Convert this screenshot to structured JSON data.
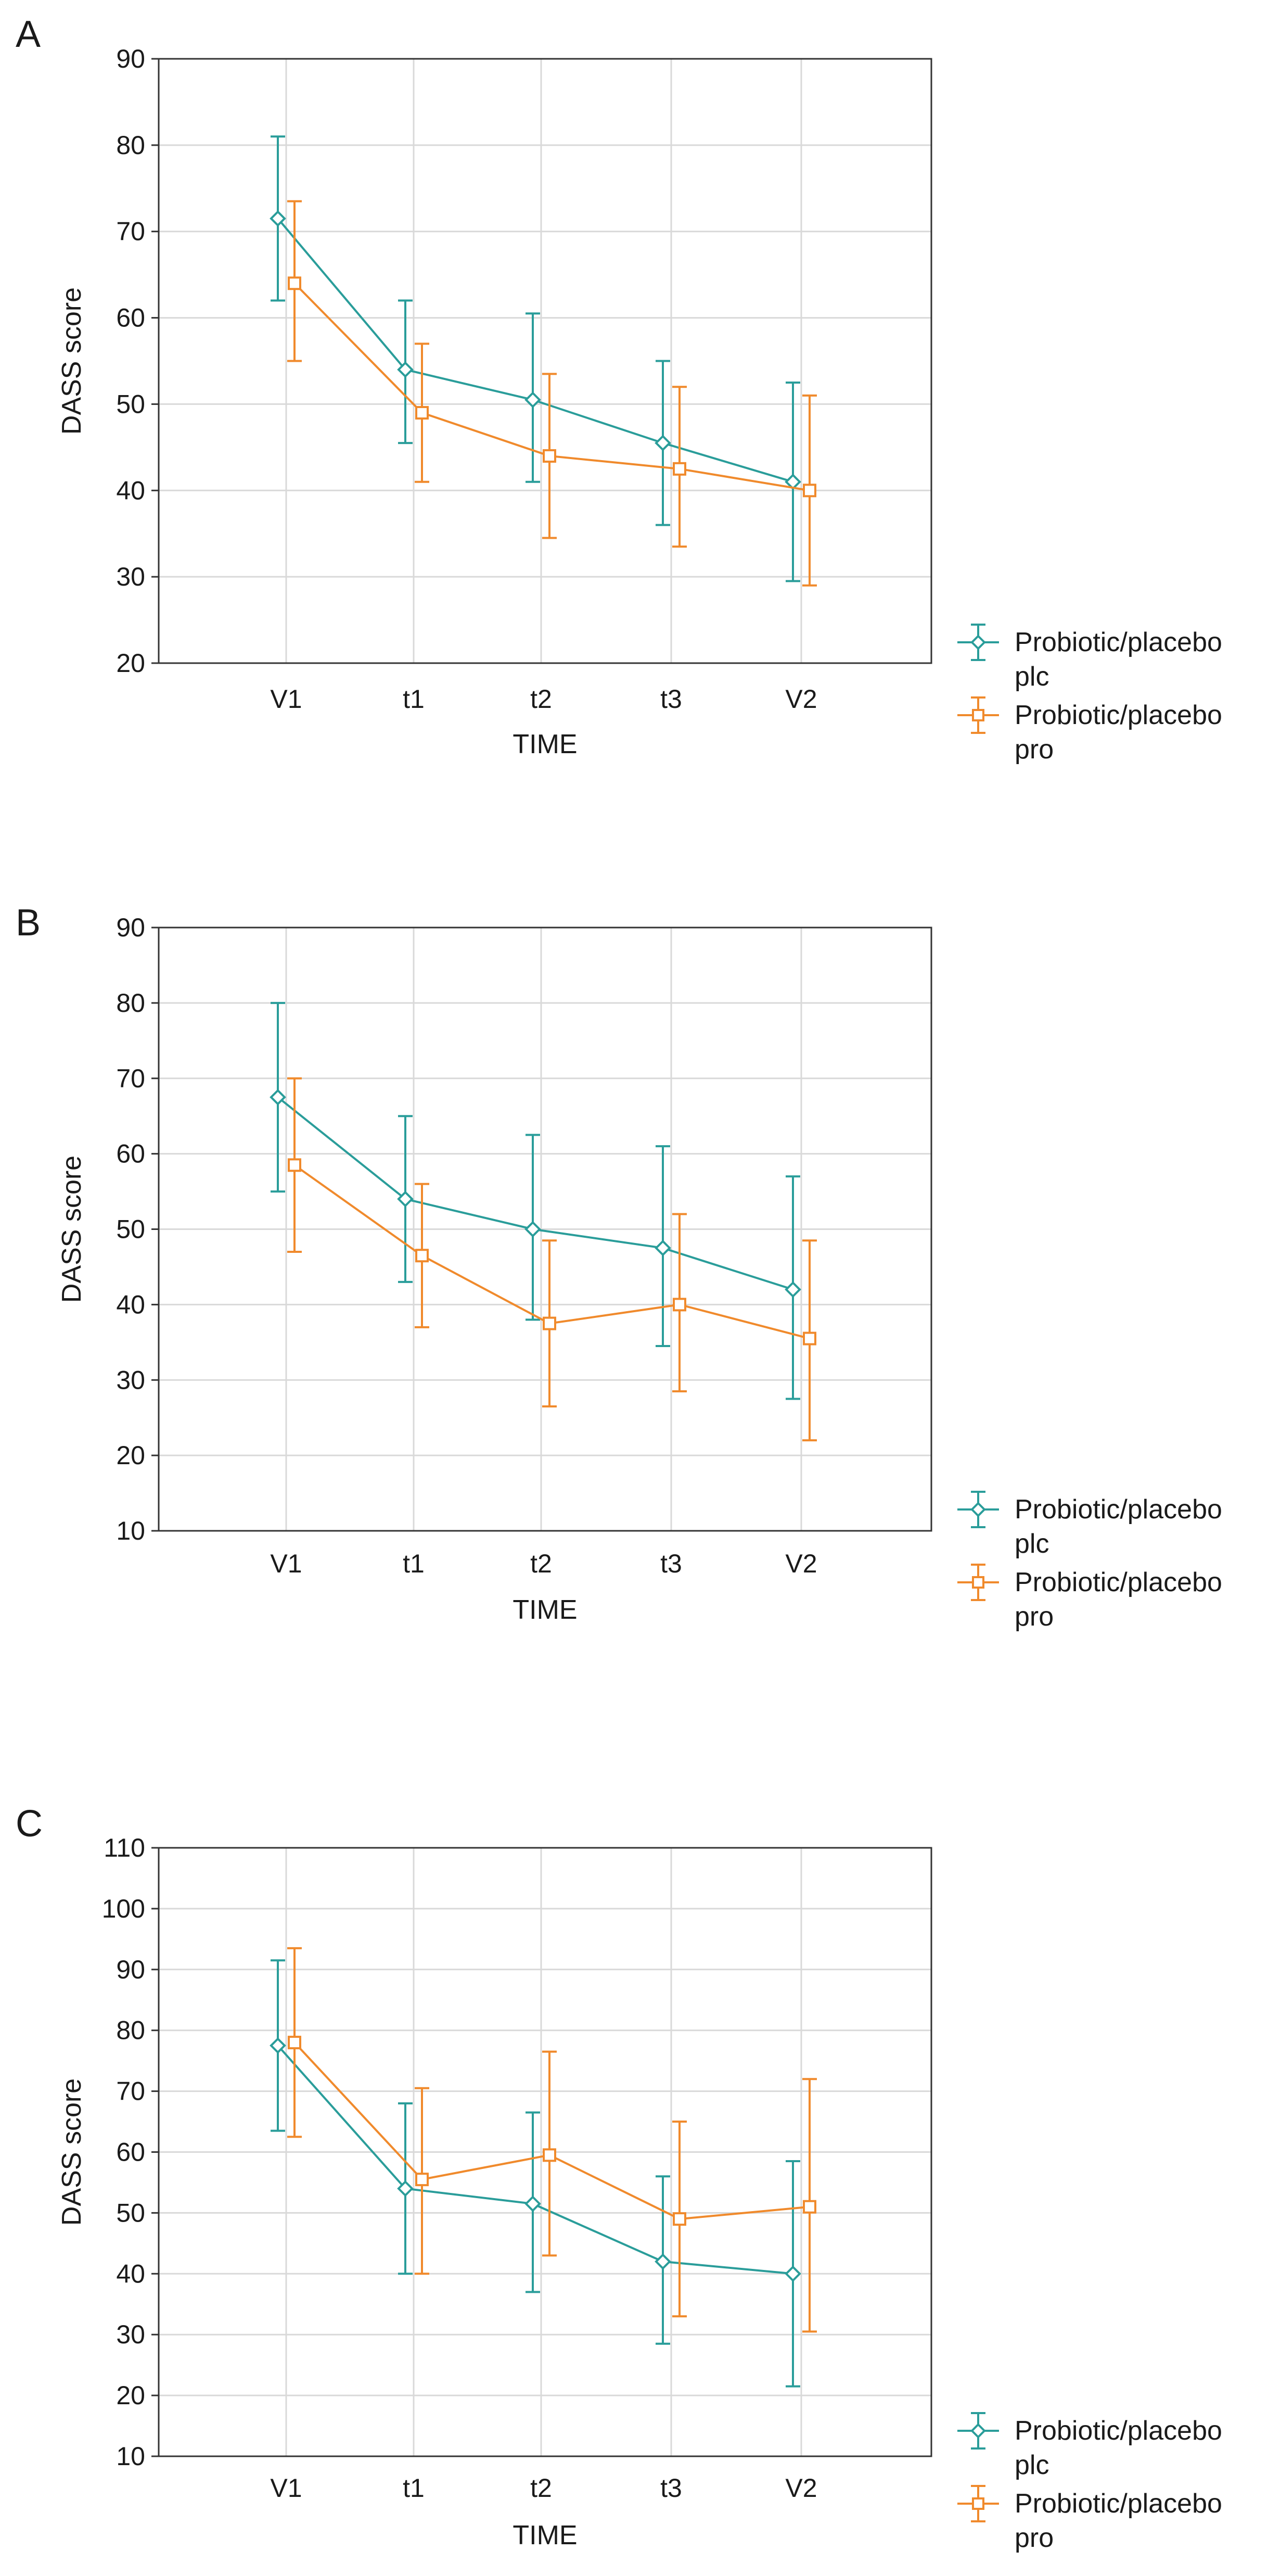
{
  "colors": {
    "plc": "#2a9d9a",
    "pro": "#f08a2c",
    "grid": "#d9d9d9",
    "frame": "#333333"
  },
  "legend": {
    "placement": "right-bottom"
  },
  "chart_data": [
    {
      "panel_label": "A",
      "type": "line",
      "error_bars": true,
      "categories": [
        "V1",
        "t1",
        "t2",
        "t3",
        "V2"
      ],
      "xlabel": "TIME",
      "ylabel": "DASS score",
      "ylim": [
        20,
        90
      ],
      "yticks": [
        20,
        30,
        40,
        50,
        60,
        70,
        80,
        90
      ],
      "grid": true,
      "series": [
        {
          "name": "Probiotic/placebo plc",
          "legend_lines": [
            "Probiotic/placebo",
            "plc"
          ],
          "marker": "diamond",
          "color": "#2a9d9a",
          "values": [
            71.5,
            54,
            50.5,
            45.5,
            41
          ],
          "lower": [
            62,
            45.5,
            41,
            36,
            29.5
          ],
          "upper": [
            81,
            62,
            60.5,
            55,
            52.5
          ]
        },
        {
          "name": "Probiotic/placebo pro",
          "legend_lines": [
            "Probiotic/placebo",
            "pro"
          ],
          "marker": "square",
          "color": "#f08a2c",
          "values": [
            64,
            49,
            44,
            42.5,
            40
          ],
          "lower": [
            55,
            41,
            34.5,
            33.5,
            29
          ],
          "upper": [
            73.5,
            57,
            53.5,
            52,
            51
          ]
        }
      ]
    },
    {
      "panel_label": "B",
      "type": "line",
      "error_bars": true,
      "categories": [
        "V1",
        "t1",
        "t2",
        "t3",
        "V2"
      ],
      "xlabel": "TIME",
      "ylabel": "DASS score",
      "ylim": [
        10,
        90
      ],
      "yticks": [
        10,
        20,
        30,
        40,
        50,
        60,
        70,
        80,
        90
      ],
      "grid": true,
      "series": [
        {
          "name": "Probiotic/placebo plc",
          "legend_lines": [
            "Probiotic/placebo",
            "plc"
          ],
          "marker": "diamond",
          "color": "#2a9d9a",
          "values": [
            67.5,
            54,
            50,
            47.5,
            42
          ],
          "lower": [
            55,
            43,
            38,
            34.5,
            27.5
          ],
          "upper": [
            80,
            65,
            62.5,
            61,
            57
          ]
        },
        {
          "name": "Probiotic/placebo pro",
          "legend_lines": [
            "Probiotic/placebo",
            "pro"
          ],
          "marker": "square",
          "color": "#f08a2c",
          "values": [
            58.5,
            46.5,
            37.5,
            40,
            35.5
          ],
          "lower": [
            47,
            37,
            26.5,
            28.5,
            22
          ],
          "upper": [
            70,
            56,
            48.5,
            52,
            48.5
          ]
        }
      ]
    },
    {
      "panel_label": "C",
      "type": "line",
      "error_bars": true,
      "categories": [
        "V1",
        "t1",
        "t2",
        "t3",
        "V2"
      ],
      "xlabel": "TIME",
      "ylabel": "DASS score",
      "ylim": [
        10,
        110
      ],
      "yticks": [
        10,
        20,
        30,
        40,
        50,
        60,
        70,
        80,
        90,
        100,
        110
      ],
      "grid": true,
      "series": [
        {
          "name": "Probiotic/placebo plc",
          "legend_lines": [
            "Probiotic/placebo",
            "plc"
          ],
          "marker": "diamond",
          "color": "#2a9d9a",
          "values": [
            77.5,
            54,
            51.5,
            42,
            40
          ],
          "lower": [
            63.5,
            40,
            37,
            28.5,
            21.5
          ],
          "upper": [
            91.5,
            68,
            66.5,
            56,
            58.5
          ]
        },
        {
          "name": "Probiotic/placebo pro",
          "legend_lines": [
            "Probiotic/placebo",
            "pro"
          ],
          "marker": "square",
          "color": "#f08a2c",
          "values": [
            78,
            55.5,
            59.5,
            49,
            51
          ],
          "lower": [
            62.5,
            40,
            43,
            33,
            30.5
          ],
          "upper": [
            93.5,
            70.5,
            76.5,
            65,
            72
          ]
        }
      ]
    }
  ]
}
